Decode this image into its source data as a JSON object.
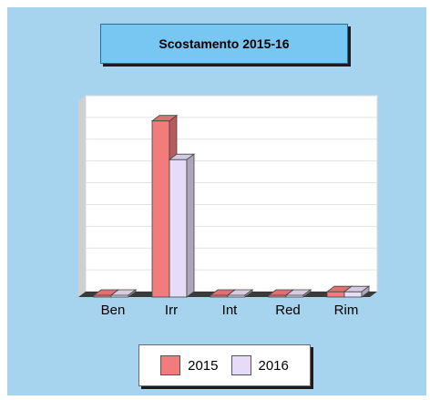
{
  "title": "Scostamento 2015-16",
  "colors": {
    "panel": "#a6d4ee",
    "title_bg": "#77c7f2",
    "series_2015": "#f27b7b",
    "series_2016": "#e6dcf8"
  },
  "chart_data": {
    "type": "bar",
    "title": "Scostamento 2015-16",
    "categories": [
      "Ben",
      "Irr",
      "Int",
      "Red",
      "Rim"
    ],
    "series": [
      {
        "name": "2015",
        "values": [
          0.5,
          100,
          0.5,
          0.5,
          3
        ]
      },
      {
        "name": "2016",
        "values": [
          0.5,
          78,
          0.5,
          0.5,
          3
        ]
      }
    ],
    "ylim": [
      0,
      105
    ],
    "grid": true,
    "legend_position": "bottom"
  }
}
